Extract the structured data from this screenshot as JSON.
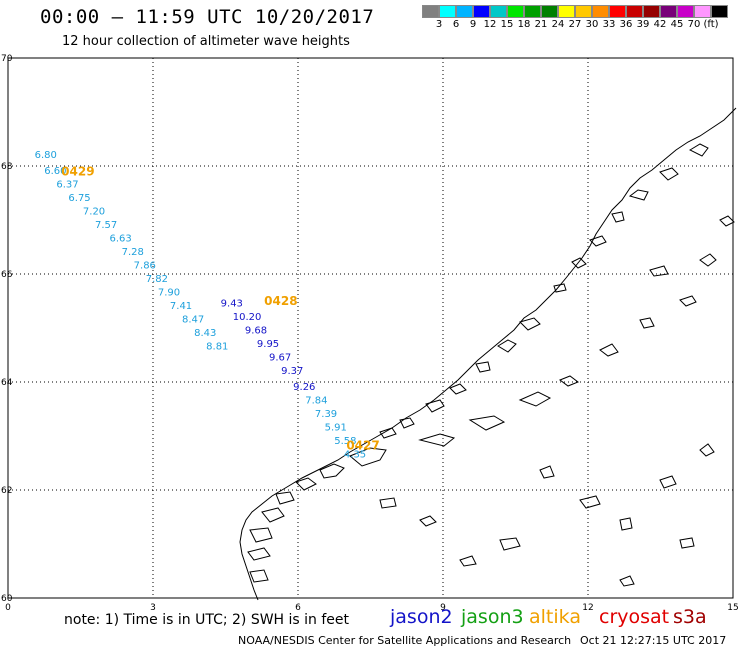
{
  "header": {
    "title": "00:00 — 11:59 UTC 10/20/2017",
    "subtitle": "12 hour collection of altimeter wave heights"
  },
  "colorbar": {
    "colors": [
      "#808080",
      "#00ffff",
      "#00b4ff",
      "#0000ff",
      "#00c8c8",
      "#00e600",
      "#00a000",
      "#008000",
      "#ffff00",
      "#ffc800",
      "#ff8c00",
      "#ff0000",
      "#c80000",
      "#960000",
      "#780078",
      "#c800c8",
      "#ff96ff",
      "#000000"
    ],
    "labels": [
      "3",
      "6",
      "9",
      "12",
      "15",
      "18",
      "21",
      "24",
      "27",
      "30",
      "33",
      "36",
      "39",
      "42",
      "45",
      "70",
      "(ft)"
    ]
  },
  "map": {
    "lat_ticks": [
      "70",
      "68",
      "66",
      "64",
      "62",
      "60"
    ],
    "lon_ticks": [
      "0",
      "3",
      "6",
      "9",
      "12",
      "15"
    ],
    "track_color": "#1ea0dc",
    "track_dark_color": "#1414c8",
    "pass_label_color": "#f0a000",
    "passes": [
      {
        "label": "0429",
        "lon": 1.1,
        "lat": 67.82
      },
      {
        "label": "0428",
        "lon": 5.3,
        "lat": 65.43
      },
      {
        "label": "0427",
        "lon": 7.0,
        "lat": 62.75
      }
    ],
    "swh_points": [
      {
        "value": "6.80",
        "lon": 0.55,
        "lat": 68.15,
        "tone": "light"
      },
      {
        "value": "6.60",
        "lon": 0.75,
        "lat": 67.85,
        "tone": "light"
      },
      {
        "value": "6.37",
        "lon": 1.0,
        "lat": 67.6,
        "tone": "light"
      },
      {
        "value": "6.75",
        "lon": 1.25,
        "lat": 67.35,
        "tone": "light"
      },
      {
        "value": "7.20",
        "lon": 1.55,
        "lat": 67.1,
        "tone": "light"
      },
      {
        "value": "7.57",
        "lon": 1.8,
        "lat": 66.85,
        "tone": "light"
      },
      {
        "value": "6.63",
        "lon": 2.1,
        "lat": 66.6,
        "tone": "light"
      },
      {
        "value": "7.28",
        "lon": 2.35,
        "lat": 66.35,
        "tone": "light"
      },
      {
        "value": "7.86",
        "lon": 2.6,
        "lat": 66.1,
        "tone": "light"
      },
      {
        "value": "7.82",
        "lon": 2.85,
        "lat": 65.85,
        "tone": "light"
      },
      {
        "value": "7.90",
        "lon": 3.1,
        "lat": 65.6,
        "tone": "light"
      },
      {
        "value": "7.41",
        "lon": 3.35,
        "lat": 65.35,
        "tone": "light"
      },
      {
        "value": "8.47",
        "lon": 3.6,
        "lat": 65.1,
        "tone": "light"
      },
      {
        "value": "8.43",
        "lon": 3.85,
        "lat": 64.85,
        "tone": "light"
      },
      {
        "value": "8.81",
        "lon": 4.1,
        "lat": 64.6,
        "tone": "light"
      },
      {
        "value": "9.43",
        "lon": 4.4,
        "lat": 65.4,
        "tone": "dark"
      },
      {
        "value": "10.20",
        "lon": 4.65,
        "lat": 65.15,
        "tone": "dark"
      },
      {
        "value": "9.68",
        "lon": 4.9,
        "lat": 64.9,
        "tone": "dark"
      },
      {
        "value": "9.95",
        "lon": 5.15,
        "lat": 64.65,
        "tone": "dark"
      },
      {
        "value": "9.67",
        "lon": 5.4,
        "lat": 64.4,
        "tone": "dark"
      },
      {
        "value": "9.37",
        "lon": 5.65,
        "lat": 64.15,
        "tone": "dark"
      },
      {
        "value": "9.26",
        "lon": 5.9,
        "lat": 63.85,
        "tone": "dark"
      },
      {
        "value": "7.84",
        "lon": 6.15,
        "lat": 63.6,
        "tone": "light"
      },
      {
        "value": "7.39",
        "lon": 6.35,
        "lat": 63.35,
        "tone": "light"
      },
      {
        "value": "5.91",
        "lon": 6.55,
        "lat": 63.1,
        "tone": "light"
      },
      {
        "value": "5.58",
        "lon": 6.75,
        "lat": 62.85,
        "tone": "light"
      },
      {
        "value": "4.35",
        "lon": 6.95,
        "lat": 62.6,
        "tone": "light"
      }
    ]
  },
  "footer": {
    "note": "note:  1) Time is in UTC;  2) SWH is in feet",
    "credit": "NOAA/NESDIS Center for Satellite Applications and Research",
    "generated": "Oct 21 12:27:15 UTC 2017"
  },
  "legend": {
    "items": [
      {
        "label": "jason2",
        "color": "#1414c8"
      },
      {
        "label": "jason3",
        "color": "#14a014"
      },
      {
        "label": "altika",
        "color": "#f0a000"
      },
      {
        "label": "cryosat",
        "color": "#e00000"
      },
      {
        "label": "s3a",
        "color": "#a00000"
      }
    ]
  }
}
